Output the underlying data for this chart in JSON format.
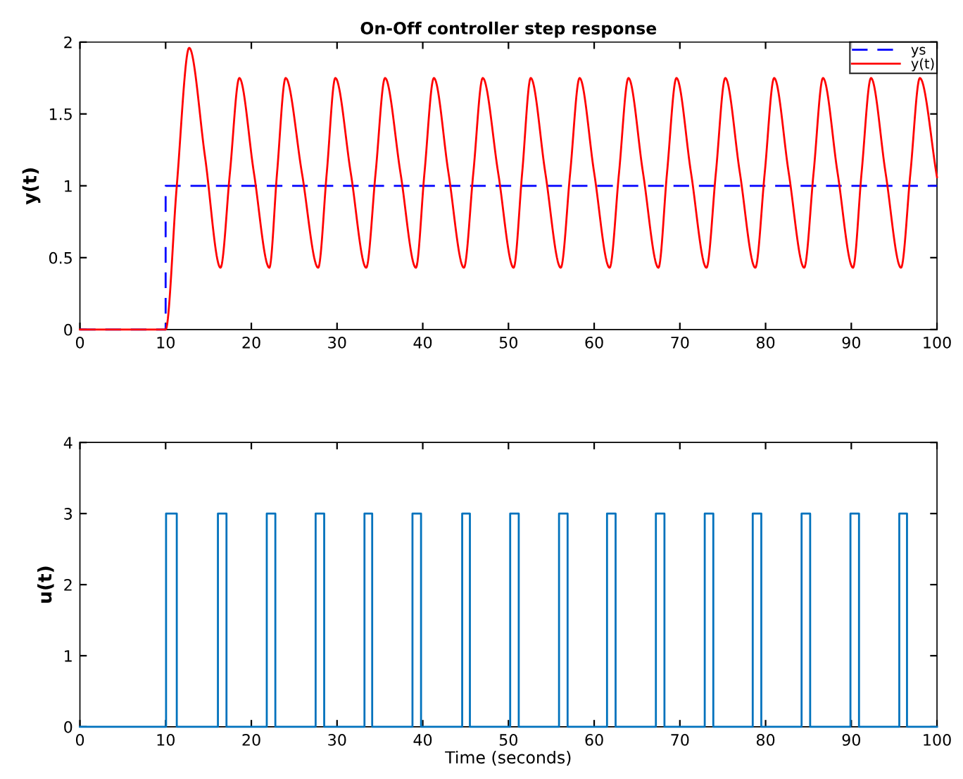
{
  "chart_data": [
    {
      "type": "line",
      "title": "On-Off controller step response",
      "ylabel": "y(t)",
      "xlim": [
        0,
        100
      ],
      "xticks": [
        0,
        10,
        20,
        30,
        40,
        50,
        60,
        70,
        80,
        90,
        100
      ],
      "ylim": [
        0,
        2
      ],
      "yticks": [
        0,
        0.5,
        1,
        1.5,
        2
      ],
      "grid": false,
      "legend": "top right",
      "series": [
        {
          "name": "ys",
          "type": "step",
          "color": "#0000ff",
          "line_style": "dashed",
          "x": [
            0,
            10,
            100
          ],
          "values": [
            0,
            1,
            1
          ]
        },
        {
          "name": "y(t)",
          "type": "line",
          "color": "#ff0000",
          "line_style": "solid",
          "x": [
            0,
            10,
            11.3,
            12.75,
            14.6,
            16.4,
            17.5,
            18.6,
            20.3,
            22.1,
            23.0,
            24.0,
            25.9,
            27.8,
            28.8,
            29.8,
            31.6,
            33.4,
            34.5,
            35.6,
            37.4,
            39.2,
            40.2,
            41.3,
            43.0,
            44.8,
            45.9,
            47.0,
            48.8,
            50.6,
            51.6,
            52.6,
            54.3,
            56.1,
            57.2,
            58.3,
            60.0,
            61.8,
            62.9,
            64.0,
            65.7,
            67.5,
            68.5,
            69.6,
            71.3,
            73.1,
            74.2,
            75.3,
            77.0,
            78.8,
            79.9,
            81.0,
            82.7,
            84.5,
            85.6,
            86.7,
            88.4,
            90.2,
            91.2,
            92.3,
            94.0,
            95.8,
            96.9,
            98.0,
            100
          ],
          "values": [
            0,
            0,
            1.0,
            1.96,
            1.2,
            0.43,
            1.09,
            1.75,
            1.09,
            0.43,
            1.09,
            1.75,
            1.09,
            0.43,
            1.09,
            1.75,
            1.09,
            0.43,
            1.09,
            1.75,
            1.09,
            0.43,
            1.09,
            1.75,
            1.09,
            0.43,
            1.09,
            1.75,
            1.09,
            0.43,
            1.09,
            1.75,
            1.09,
            0.43,
            1.09,
            1.75,
            1.09,
            0.43,
            1.09,
            1.75,
            1.09,
            0.43,
            1.09,
            1.75,
            1.09,
            0.43,
            1.09,
            1.75,
            1.09,
            0.43,
            1.09,
            1.75,
            1.09,
            0.43,
            1.09,
            1.75,
            1.09,
            0.43,
            1.09,
            1.75,
            1.09,
            0.43,
            1.09,
            1.75,
            1.06
          ]
        }
      ]
    },
    {
      "type": "step",
      "xlabel": "Time (seconds)",
      "ylabel": "u(t)",
      "xlim": [
        0,
        100
      ],
      "xticks": [
        0,
        10,
        20,
        30,
        40,
        50,
        60,
        70,
        80,
        90,
        100
      ],
      "ylim": [
        0,
        4
      ],
      "yticks": [
        0,
        1,
        2,
        3,
        4
      ],
      "grid": false,
      "series": [
        {
          "color": "#0072bd",
          "x": [
            0,
            10.05,
            11.3,
            16.1,
            17.1,
            21.8,
            22.8,
            27.5,
            28.5,
            33.2,
            34.1,
            38.8,
            39.8,
            44.6,
            45.5,
            50.2,
            51.2,
            55.9,
            56.9,
            61.5,
            62.5,
            67.2,
            68.2,
            72.9,
            73.9,
            78.5,
            79.5,
            84.2,
            85.2,
            89.9,
            90.9,
            95.6,
            96.5,
            100
          ],
          "values": [
            0,
            3,
            0,
            3,
            0,
            3,
            0,
            3,
            0,
            3,
            0,
            3,
            0,
            3,
            0,
            3,
            0,
            3,
            0,
            3,
            0,
            3,
            0,
            3,
            0,
            3,
            0,
            3,
            0,
            3,
            0,
            3,
            0,
            0
          ]
        }
      ]
    }
  ]
}
